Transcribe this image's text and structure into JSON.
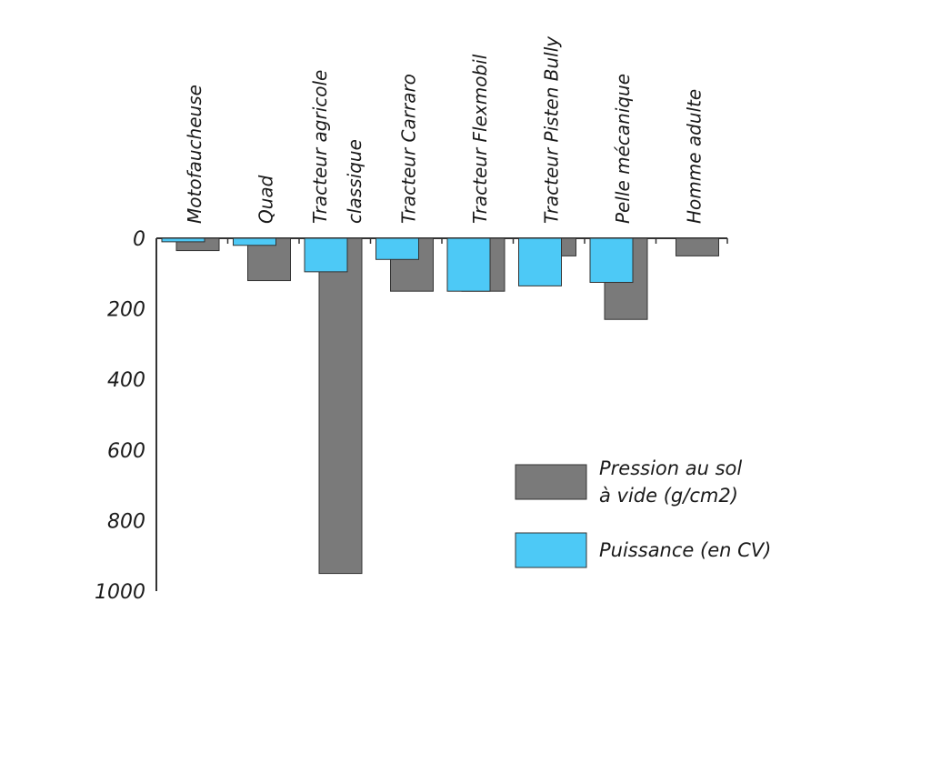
{
  "chart_data": {
    "type": "bar",
    "orientation": "vertical-inverted",
    "categories": [
      [
        "Motofaucheuse"
      ],
      [
        "Quad"
      ],
      [
        "Tracteur agricole",
        "classique"
      ],
      [
        "Tracteur Carraro"
      ],
      [
        "Tracteur Flexmobil"
      ],
      [
        "Tracteur Pisten Bully"
      ],
      [
        "Pelle mécanique"
      ],
      [
        "Homme adulte"
      ]
    ],
    "series": [
      {
        "name": "Puissance (en CV)",
        "color": "#4dc9f6",
        "values": [
          10,
          20,
          95,
          60,
          150,
          135,
          125,
          null
        ]
      },
      {
        "name": "Pression au sol à vide (g/cm2)",
        "color": "#7a7a7a",
        "values": [
          35,
          120,
          950,
          150,
          150,
          50,
          230,
          50
        ]
      }
    ],
    "ylim": [
      0,
      1000
    ],
    "yticks": [
      "0",
      "200",
      "400",
      "600",
      "800",
      "1000"
    ],
    "xlabel": "",
    "ylabel": "",
    "legend": {
      "position": "lower-right",
      "entries": [
        {
          "lines": [
            "Pression au sol",
            "à vide (g/cm2)"
          ],
          "color": "#7a7a7a"
        },
        {
          "lines": [
            "Puissance (en CV)"
          ],
          "color": "#4dc9f6"
        }
      ]
    },
    "grid": false
  }
}
